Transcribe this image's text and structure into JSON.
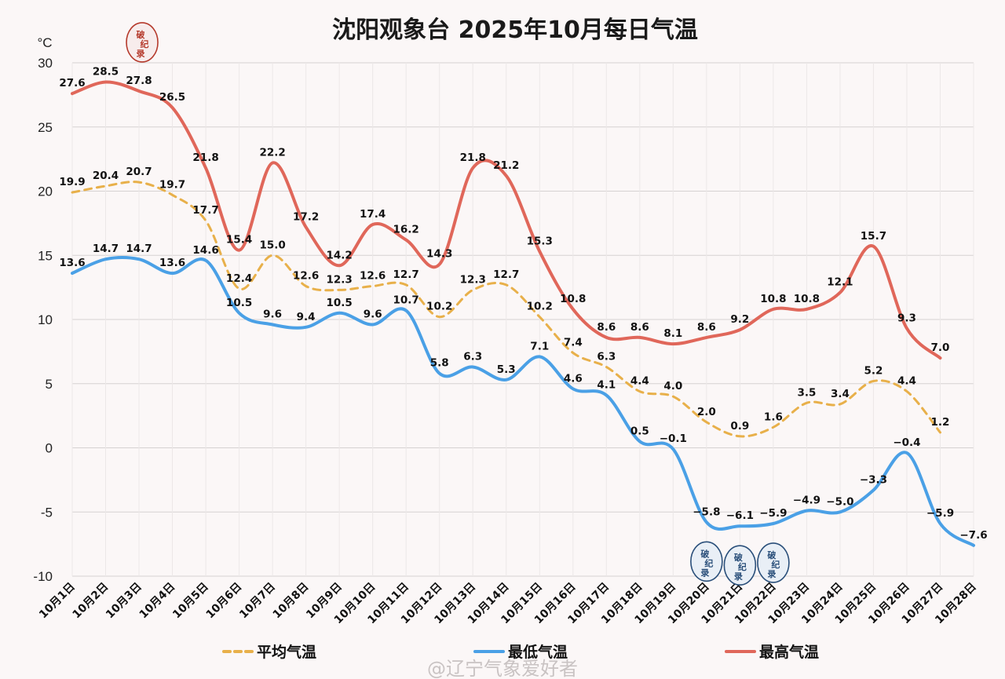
{
  "chart_data": {
    "type": "line",
    "title": "沈阳观象台 2025年10月每日气温",
    "ylabel": "°C",
    "ylim": [
      -10,
      30
    ],
    "yticks": [
      30,
      25,
      20,
      15,
      10,
      5,
      0,
      -5,
      -10
    ],
    "grid": true,
    "legend_position": "bottom",
    "categories": [
      "10月1日",
      "10月2日",
      "10月3日",
      "10月4日",
      "10月5日",
      "10月6日",
      "10月7日",
      "10月8日",
      "10月9日",
      "10月10日",
      "10月11日",
      "10月12日",
      "10月13日",
      "10月14日",
      "10月15日",
      "10月16日",
      "10月17日",
      "10月18日",
      "10月19日",
      "10月20日",
      "10月21日",
      "10月22日",
      "10月23日",
      "10月24日",
      "10月25日",
      "10月26日",
      "10月27日",
      "10月28日"
    ],
    "series": [
      {
        "name": "平均气温",
        "color": "#e8b04a",
        "style": "dashed",
        "values": [
          19.9,
          20.4,
          20.7,
          19.7,
          17.7,
          12.4,
          15.0,
          12.6,
          12.3,
          12.6,
          12.7,
          10.2,
          12.3,
          12.7,
          10.2,
          7.4,
          6.3,
          4.4,
          4.0,
          2.0,
          0.9,
          1.6,
          3.5,
          3.4,
          5.2,
          4.4,
          1.2,
          null
        ]
      },
      {
        "name": "最低气温",
        "color": "#4aa0e6",
        "style": "solid",
        "values": [
          13.6,
          14.7,
          14.7,
          13.6,
          14.6,
          10.5,
          9.6,
          9.4,
          10.5,
          9.6,
          10.7,
          5.8,
          6.3,
          5.3,
          7.1,
          4.6,
          4.1,
          0.5,
          -0.1,
          -5.8,
          -6.1,
          -5.9,
          -4.9,
          -5.0,
          -3.3,
          -0.4,
          -5.9,
          -7.6
        ]
      },
      {
        "name": "最高气温",
        "color": "#e0675a",
        "style": "solid",
        "values": [
          27.6,
          28.5,
          27.8,
          26.5,
          21.8,
          15.4,
          22.2,
          17.2,
          14.2,
          17.4,
          16.2,
          14.3,
          21.8,
          21.2,
          15.3,
          10.8,
          8.6,
          8.6,
          8.1,
          8.6,
          9.2,
          10.8,
          10.8,
          12.1,
          15.7,
          9.3,
          7.0,
          null
        ]
      }
    ],
    "annotations": [
      {
        "text": "破纪录",
        "category": "10月3日",
        "series": "最高气温",
        "color": "#b53a2c"
      },
      {
        "text": "破纪录",
        "category": "10月20日",
        "series": "最低气温",
        "color": "#2a4f7a"
      },
      {
        "text": "破纪录",
        "category": "10月21日",
        "series": "最低气温",
        "color": "#2a4f7a"
      },
      {
        "text": "破纪录",
        "category": "10月22日",
        "series": "最低气温",
        "color": "#2a4f7a"
      }
    ]
  },
  "watermark": "@辽宁气象爱好者"
}
